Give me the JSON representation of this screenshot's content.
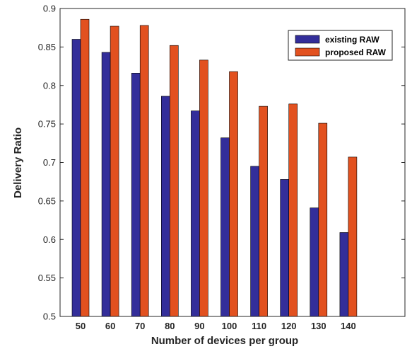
{
  "chart_data": {
    "type": "bar",
    "xlabel": "Number of devices per group",
    "ylabel": "Delivery Ratio",
    "categories": [
      "50",
      "60",
      "70",
      "80",
      "90",
      "100",
      "110",
      "120",
      "130",
      "140"
    ],
    "ylim": [
      0.5,
      0.9
    ],
    "yticks": [
      "0.5",
      "0.55",
      "0.6",
      "0.65",
      "0.7",
      "0.75",
      "0.8",
      "0.85",
      "0.9"
    ],
    "grid": false,
    "legend_position": "top-right",
    "series": [
      {
        "name": "existing RAW",
        "color": "#332e9a",
        "values": [
          0.86,
          0.843,
          0.816,
          0.786,
          0.767,
          0.732,
          0.695,
          0.678,
          0.641,
          0.609
        ]
      },
      {
        "name": "proposed RAW",
        "color": "#e2511f",
        "values": [
          0.886,
          0.877,
          0.878,
          0.852,
          0.833,
          0.818,
          0.773,
          0.776,
          0.751,
          0.707
        ]
      }
    ]
  }
}
